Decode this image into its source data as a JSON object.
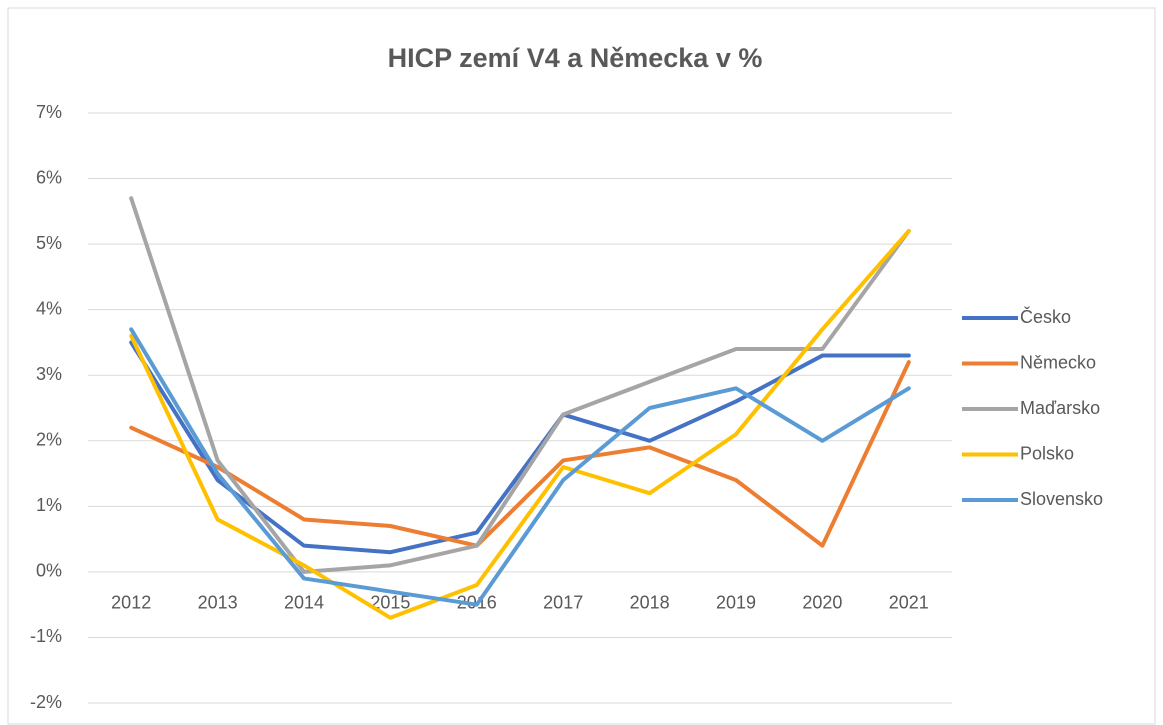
{
  "chart_data": {
    "type": "line",
    "title": "HICP zemí V4 a Německa v %",
    "categories": [
      "2012",
      "2013",
      "2014",
      "2015",
      "2016",
      "2017",
      "2018",
      "2019",
      "2020",
      "2021"
    ],
    "series": [
      {
        "name": "Česko",
        "color": "#4472c4",
        "values": [
          3.5,
          1.4,
          0.4,
          0.3,
          0.6,
          2.4,
          2.0,
          2.6,
          3.3,
          3.3
        ]
      },
      {
        "name": "Německo",
        "color": "#ed7d31",
        "values": [
          2.2,
          1.6,
          0.8,
          0.7,
          0.4,
          1.7,
          1.9,
          1.4,
          0.4,
          3.2
        ]
      },
      {
        "name": "Maďarsko",
        "color": "#a5a5a5",
        "values": [
          5.7,
          1.7,
          0.0,
          0.1,
          0.4,
          2.4,
          2.9,
          3.4,
          3.4,
          5.2
        ]
      },
      {
        "name": "Polsko",
        "color": "#ffc000",
        "values": [
          3.6,
          0.8,
          0.1,
          -0.7,
          -0.2,
          1.6,
          1.2,
          2.1,
          3.7,
          5.2
        ]
      },
      {
        "name": "Slovensko",
        "color": "#5b9bd5",
        "values": [
          3.7,
          1.5,
          -0.1,
          -0.3,
          -0.5,
          1.4,
          2.5,
          2.8,
          2.0,
          2.8
        ]
      }
    ],
    "ylim": [
      -2,
      7
    ],
    "yticks": [
      {
        "value": -2,
        "label": "-2%"
      },
      {
        "value": -1,
        "label": "-1%"
      },
      {
        "value": 0,
        "label": "0%"
      },
      {
        "value": 1,
        "label": "1%"
      },
      {
        "value": 2,
        "label": "2%"
      },
      {
        "value": 3,
        "label": "3%"
      },
      {
        "value": 4,
        "label": "4%"
      },
      {
        "value": 5,
        "label": "5%"
      },
      {
        "value": 6,
        "label": "6%"
      },
      {
        "value": 7,
        "label": "7%"
      }
    ],
    "grid": true,
    "legend": "right"
  }
}
